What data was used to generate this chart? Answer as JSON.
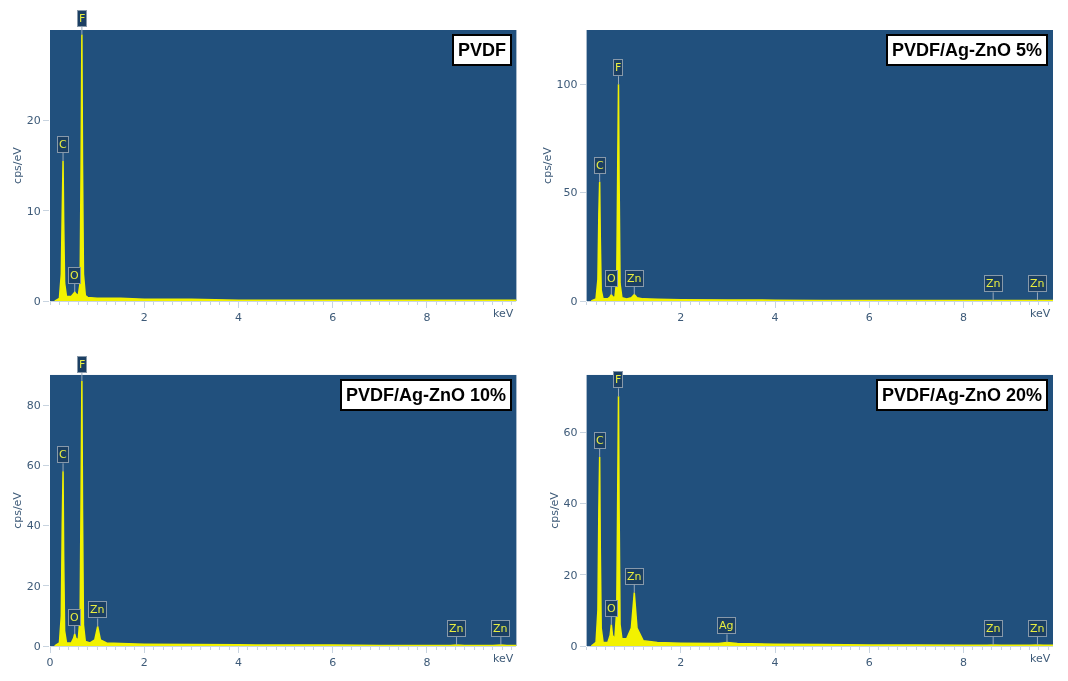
{
  "chart_data": [
    {
      "type": "area",
      "title": "PVDF",
      "xlabel": "keV",
      "ylabel": "cps/eV",
      "xlim": [
        0,
        9.9
      ],
      "ylim": [
        0,
        30
      ],
      "xticks": [
        2,
        4,
        6,
        8
      ],
      "yticks": [
        0,
        10,
        20
      ],
      "x": [
        0.1,
        0.2,
        0.24,
        0.26,
        0.277,
        0.29,
        0.31,
        0.35,
        0.45,
        0.5,
        0.525,
        0.55,
        0.6,
        0.64,
        0.66,
        0.677,
        0.69,
        0.71,
        0.75,
        0.8,
        1.0,
        1.5,
        2,
        3,
        4,
        5,
        6,
        7,
        8,
        9,
        9.9
      ],
      "series": [
        {
          "color": "#f2f200",
          "values": [
            0,
            0.3,
            3,
            10,
            15.5,
            9,
            2,
            0.5,
            0.5,
            0.8,
            1,
            0.8,
            0.6,
            2,
            15,
            29.5,
            15,
            3,
            0.6,
            0.4,
            0.3,
            0.3,
            0.2,
            0.2,
            0.1,
            0.1,
            0.1,
            0.1,
            0.1,
            0.1,
            0.1
          ]
        }
      ],
      "annotations": [
        {
          "text": "C",
          "x": 0.277,
          "y": 15.5
        },
        {
          "text": "O",
          "x": 0.525,
          "y": 1
        },
        {
          "text": "F",
          "x": 0.677,
          "y": 29.5
        }
      ]
    },
    {
      "type": "area",
      "title": "PVDF/Ag-ZnO 5%",
      "xlabel": "keV",
      "ylabel": "cps/eV",
      "xlim": [
        0,
        9.9
      ],
      "ylim": [
        0,
        125
      ],
      "xticks": [
        2,
        4,
        6,
        8
      ],
      "yticks": [
        0,
        50,
        100
      ],
      "x": [
        0.1,
        0.2,
        0.24,
        0.26,
        0.277,
        0.29,
        0.31,
        0.35,
        0.45,
        0.5,
        0.525,
        0.55,
        0.6,
        0.64,
        0.66,
        0.677,
        0.69,
        0.71,
        0.75,
        0.85,
        0.95,
        1.012,
        1.07,
        1.2,
        1.5,
        2,
        3,
        4,
        5,
        6,
        7,
        8,
        8.5,
        8.63,
        8.8,
        9.4,
        9.57,
        9.7,
        9.9
      ],
      "series": [
        {
          "color": "#f2f200",
          "values": [
            0,
            1,
            10,
            40,
            55,
            30,
            5,
            1,
            1,
            2,
            3,
            2,
            1.5,
            10,
            60,
            100,
            55,
            8,
            1.5,
            1,
            1.5,
            3,
            1.5,
            1,
            0.8,
            0.6,
            0.5,
            0.4,
            0.3,
            0.3,
            0.2,
            0.2,
            0.2,
            0.3,
            0.2,
            0.2,
            0.3,
            0.2,
            0.2
          ]
        }
      ],
      "annotations": [
        {
          "text": "C",
          "x": 0.277,
          "y": 55
        },
        {
          "text": "O",
          "x": 0.525,
          "y": 3
        },
        {
          "text": "F",
          "x": 0.677,
          "y": 100
        },
        {
          "text": "Zn",
          "x": 1.012,
          "y": 3
        },
        {
          "text": "Zn",
          "x": 8.63,
          "y": 0.3
        },
        {
          "text": "Zn",
          "x": 9.57,
          "y": 0.3
        }
      ]
    },
    {
      "type": "area",
      "title": "PVDF/Ag-ZnO 10%",
      "xlabel": "keV",
      "ylabel": "cps/eV",
      "xlim": [
        0,
        9.9
      ],
      "ylim": [
        0,
        90
      ],
      "xticks": [
        0,
        2,
        4,
        6,
        8
      ],
      "yticks": [
        0,
        20,
        40,
        60,
        80
      ],
      "x": [
        0.1,
        0.2,
        0.24,
        0.26,
        0.277,
        0.29,
        0.31,
        0.35,
        0.45,
        0.5,
        0.525,
        0.55,
        0.6,
        0.64,
        0.66,
        0.677,
        0.69,
        0.71,
        0.75,
        0.85,
        0.95,
        1.012,
        1.07,
        1.2,
        1.5,
        2,
        3,
        4,
        5,
        6,
        7,
        8,
        8.5,
        8.63,
        8.8,
        9.4,
        9.57,
        9.7,
        9.9
      ],
      "series": [
        {
          "color": "#f2f200",
          "values": [
            0,
            1,
            10,
            40,
            58,
            30,
            5,
            1,
            1,
            2.5,
            4,
            2.5,
            2,
            10,
            50,
            88,
            45,
            7,
            1.5,
            1,
            2,
            6.5,
            2,
            1,
            0.8,
            0.6,
            0.5,
            0.4,
            0.3,
            0.3,
            0.2,
            0.2,
            0.2,
            0.3,
            0.2,
            0.2,
            0.3,
            0.2,
            0.2
          ]
        }
      ],
      "annotations": [
        {
          "text": "C",
          "x": 0.277,
          "y": 58
        },
        {
          "text": "O",
          "x": 0.525,
          "y": 4
        },
        {
          "text": "F",
          "x": 0.677,
          "y": 88
        },
        {
          "text": "Zn",
          "x": 1.012,
          "y": 6.5
        },
        {
          "text": "Zn",
          "x": 8.63,
          "y": 0.3
        },
        {
          "text": "Zn",
          "x": 9.57,
          "y": 0.3
        }
      ]
    },
    {
      "type": "area",
      "title": "PVDF/Ag-ZnO 20%",
      "xlabel": "keV",
      "ylabel": "cps/eV",
      "xlim": [
        0,
        9.9
      ],
      "ylim": [
        0,
        76
      ],
      "xticks": [
        2,
        4,
        6,
        8
      ],
      "yticks": [
        0,
        20,
        40,
        60
      ],
      "x": [
        0.1,
        0.2,
        0.24,
        0.26,
        0.277,
        0.29,
        0.31,
        0.35,
        0.45,
        0.5,
        0.525,
        0.55,
        0.6,
        0.64,
        0.66,
        0.677,
        0.69,
        0.71,
        0.75,
        0.85,
        0.95,
        1.012,
        1.07,
        1.2,
        1.5,
        2,
        2.8,
        2.98,
        3.2,
        4,
        5,
        6,
        7,
        8,
        8.5,
        8.63,
        8.8,
        9.4,
        9.57,
        9.7,
        9.9
      ],
      "series": [
        {
          "color": "#f2f200",
          "values": [
            0,
            1,
            10,
            38,
            53,
            28,
            5,
            1,
            1,
            3,
            6,
            3,
            2,
            10,
            42,
            70,
            38,
            6,
            2,
            2,
            5,
            15,
            5,
            1.5,
            1,
            0.8,
            0.7,
            1,
            0.7,
            0.5,
            0.4,
            0.3,
            0.3,
            0.2,
            0.2,
            0.3,
            0.2,
            0.2,
            0.3,
            0.2,
            0.2
          ]
        }
      ],
      "annotations": [
        {
          "text": "C",
          "x": 0.277,
          "y": 53
        },
        {
          "text": "O",
          "x": 0.525,
          "y": 6
        },
        {
          "text": "F",
          "x": 0.677,
          "y": 70
        },
        {
          "text": "Zn",
          "x": 1.012,
          "y": 15
        },
        {
          "text": "Ag",
          "x": 2.98,
          "y": 1
        },
        {
          "text": "Zn",
          "x": 8.63,
          "y": 0.3
        },
        {
          "text": "Zn",
          "x": 9.57,
          "y": 0.3
        }
      ]
    }
  ]
}
